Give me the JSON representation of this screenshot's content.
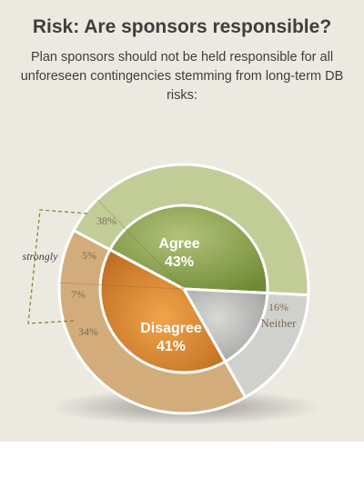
{
  "title": "Risk: Are sponsors responsible?",
  "subtitle": "Plan sponsors should not be held responsible for all unforeseen contingencies stemming from long-term DB risks:",
  "chart_data": {
    "type": "pie",
    "slices": [
      {
        "label": "Agree",
        "value": 43,
        "pct_label": "43%",
        "color": "#9fb266"
      },
      {
        "label": "Neither",
        "value": 16,
        "pct_label": "16%",
        "color": "#c9c9c6"
      },
      {
        "label": "Disagree",
        "value": 41,
        "pct_label": "41%",
        "color": "#d8a569"
      }
    ],
    "breakdown": [
      {
        "parent": "Agree",
        "kind": "",
        "label": "38%",
        "value": 38
      },
      {
        "parent": "Agree",
        "kind": "strongly",
        "label": "5%",
        "value": 5
      },
      {
        "parent": "Disagree",
        "kind": "strongly",
        "label": "7%",
        "value": 7
      },
      {
        "parent": "Disagree",
        "kind": "",
        "label": "34%",
        "value": 34
      }
    ],
    "bracket_label": "strongly"
  }
}
